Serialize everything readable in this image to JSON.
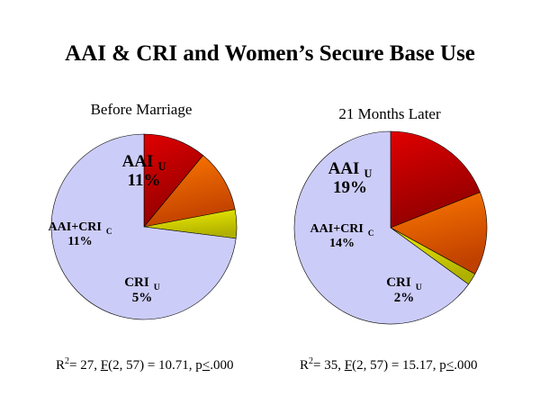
{
  "title": "AAI & CRI and Women’s Secure Base Use",
  "chart_data": [
    {
      "type": "pie",
      "subtitle": "Before Marriage",
      "slices": [
        {
          "label": "AAI",
          "sub": "U",
          "value": 11,
          "value_label": "11%",
          "color": "#e00000",
          "color_dark": "#900000"
        },
        {
          "label": "",
          "sub": "",
          "value": 11,
          "value_label": "",
          "color": "#ff7a00",
          "color_dark": "#c04000"
        },
        {
          "label": "CRI",
          "sub": "U",
          "value": 5,
          "value_label": "5%",
          "color": "#f0f000",
          "color_dark": "#b0b000"
        },
        {
          "label": "",
          "sub": "",
          "value": 73,
          "value_label": "",
          "color": "#ccccf8",
          "color_dark": "#ccccf8"
        }
      ],
      "side_label": {
        "label": "AAI+CRI",
        "sub": "C",
        "value_label": "11%"
      }
    },
    {
      "type": "pie",
      "subtitle": "21 Months Later",
      "slices": [
        {
          "label": "AAI",
          "sub": "U",
          "value": 19,
          "value_label": "19%",
          "color": "#e00000",
          "color_dark": "#900000"
        },
        {
          "label": "",
          "sub": "",
          "value": 14,
          "value_label": "",
          "color": "#ff7a00",
          "color_dark": "#c04000"
        },
        {
          "label": "CRI",
          "sub": "U",
          "value": 2,
          "value_label": "2%",
          "color": "#f0f000",
          "color_dark": "#b0b000"
        },
        {
          "label": "",
          "sub": "",
          "value": 65,
          "value_label": "",
          "color": "#ccccf8",
          "color_dark": "#ccccf8"
        }
      ],
      "side_label": {
        "label": "AAI+CRI",
        "sub": "C",
        "value_label": "14%"
      }
    }
  ],
  "stats": [
    {
      "r2_base": "R",
      "r2_sup": "2",
      "r2_rest": "= 27, ",
      "f": "F",
      "f_rest": "(2, 57) = 10.71, p",
      "p_op": "<",
      "p_rest": ".000"
    },
    {
      "r2_base": "R",
      "r2_sup": "2",
      "r2_rest": "= 35, ",
      "f": "F",
      "f_rest": "(2, 57) = 15.17,  p",
      "p_op": "<",
      "p_rest": ".000"
    }
  ]
}
